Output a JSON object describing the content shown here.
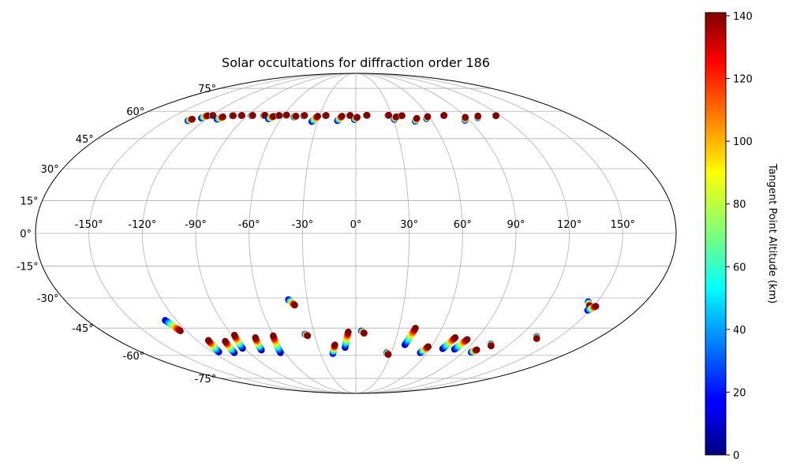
{
  "chart_data": {
    "type": "scatter",
    "projection": "mollweide",
    "title": "Solar occultations for diffraction order 186",
    "xlabel": "",
    "ylabel": "",
    "x_ticks": [
      {
        "value": -150,
        "label": "-150°"
      },
      {
        "value": -120,
        "label": "-120°"
      },
      {
        "value": -90,
        "label": "-90°"
      },
      {
        "value": -60,
        "label": "-60°"
      },
      {
        "value": -30,
        "label": "-30°"
      },
      {
        "value": 0,
        "label": "0°"
      },
      {
        "value": 30,
        "label": "30°"
      },
      {
        "value": 60,
        "label": "60°"
      },
      {
        "value": 90,
        "label": "90°"
      },
      {
        "value": 120,
        "label": "120°"
      },
      {
        "value": 150,
        "label": "150°"
      }
    ],
    "y_ticks": [
      {
        "value": 75,
        "label": "75°"
      },
      {
        "value": 60,
        "label": "60°"
      },
      {
        "value": 45,
        "label": "45°"
      },
      {
        "value": 30,
        "label": "30°"
      },
      {
        "value": 15,
        "label": "15°"
      },
      {
        "value": 0,
        "label": "0°"
      },
      {
        "value": -15,
        "label": "-15°"
      },
      {
        "value": -30,
        "label": "-30°"
      },
      {
        "value": -45,
        "label": "-45°"
      },
      {
        "value": -60,
        "label": "-60°"
      },
      {
        "value": -75,
        "label": "-75°"
      }
    ],
    "grid": true,
    "colorbar": {
      "label": "Tangent Point Altitude (km)",
      "range": [
        0,
        141
      ],
      "colormap": "jet",
      "ticks": [
        0,
        20,
        40,
        60,
        80,
        100,
        120,
        140
      ]
    },
    "tracks": [
      {
        "lon": -132,
        "lats": [
          54.6,
          55.5
        ]
      },
      {
        "lon": -124,
        "lats": [
          56.1,
          57.5
        ]
      },
      {
        "lon": -119,
        "lats": [
          57.5,
          57.6
        ]
      },
      {
        "lon": -110,
        "lats": [
          55.4,
          56.8
        ]
      },
      {
        "lon": -102,
        "lats": [
          57.4,
          57.5
        ]
      },
      {
        "lon": -95,
        "lats": [
          57.5,
          57.6
        ]
      },
      {
        "lon": -86,
        "lats": [
          57.4,
          57.6
        ]
      },
      {
        "lon": -76,
        "lats": [
          57.5,
          57.7
        ]
      },
      {
        "lon": -69,
        "lats": [
          55.6,
          57.1
        ]
      },
      {
        "lon": -64,
        "lats": [
          57.5,
          57.6
        ]
      },
      {
        "lon": -58,
        "lats": [
          57.7,
          57.8
        ]
      },
      {
        "lon": -50,
        "lats": [
          56.7,
          57.2
        ]
      },
      {
        "lon": -43,
        "lats": [
          57.4,
          57.6
        ]
      },
      {
        "lon": -33,
        "lats": [
          54.1,
          57.2
        ]
      },
      {
        "lon": -25,
        "lats": [
          57.5,
          57.6
        ]
      },
      {
        "lon": -13,
        "lats": [
          54.6,
          57.2
        ]
      },
      {
        "lon": -5,
        "lats": [
          57.5,
          57.6
        ]
      },
      {
        "lon": 0,
        "lats": [
          55.2,
          56.6
        ]
      },
      {
        "lon": 9,
        "lats": [
          57.6,
          57.7
        ]
      },
      {
        "lon": 27,
        "lats": [
          57.6,
          57.7
        ]
      },
      {
        "lon": 32,
        "lats": [
          55.3,
          56.9
        ]
      },
      {
        "lon": 38,
        "lats": [
          57.4,
          57.5
        ]
      },
      {
        "lon": 48,
        "lats": [
          54.3,
          56.0
        ]
      },
      {
        "lon": 58,
        "lats": [
          55.7,
          57.0
        ]
      },
      {
        "lon": 73,
        "lats": [
          57.5,
          57.6
        ]
      },
      {
        "lon": 88,
        "lats": [
          54.8,
          56.6
        ]
      },
      {
        "lon": 100,
        "lats": [
          56.3,
          57.3
        ]
      },
      {
        "lon": 116,
        "lats": [
          57.4,
          57.5
        ]
      },
      {
        "lon": -126,
        "lats": [
          -41,
          -46.5
        ]
      },
      {
        "lon": -113,
        "lats": [
          -58,
          -51.5
        ]
      },
      {
        "lon": -101,
        "lats": [
          -58.5,
          -52
        ]
      },
      {
        "lon": -90,
        "lats": [
          -56,
          -48.7
        ]
      },
      {
        "lon": -76,
        "lats": [
          -57,
          -50
        ]
      },
      {
        "lon": -62,
        "lats": [
          -58.5,
          -49
        ]
      },
      {
        "lon": -40,
        "lats": [
          -30.8,
          -33.5
        ]
      },
      {
        "lon": -36,
        "lats": [
          -48.2,
          -49
        ]
      },
      {
        "lon": -18,
        "lats": [
          -59,
          -54
        ]
      },
      {
        "lon": -7,
        "lats": [
          -55.5,
          -47
        ]
      },
      {
        "lon": 5,
        "lats": [
          -46.5,
          -47.7
        ]
      },
      {
        "lon": 27,
        "lats": [
          -58.5,
          -59.5
        ]
      },
      {
        "lon": 40,
        "lats": [
          -54,
          -45
        ]
      },
      {
        "lon": 56,
        "lats": [
          -58.5,
          -55
        ]
      },
      {
        "lon": 72,
        "lats": [
          -56.2,
          -50
        ]
      },
      {
        "lon": 82,
        "lats": [
          -56.5,
          -51
        ]
      },
      {
        "lon": 98,
        "lats": [
          -58.2,
          -56.8
        ]
      },
      {
        "lon": 106,
        "lats": [
          -53.5,
          -54.6
        ]
      },
      {
        "lon": 134,
        "lats": [
          -49.5,
          -50.6
        ]
      },
      {
        "lon": 146,
        "lats": [
          -31.8,
          -34
        ]
      },
      {
        "lon": 150,
        "lats": [
          -36,
          -34
        ]
      }
    ]
  }
}
